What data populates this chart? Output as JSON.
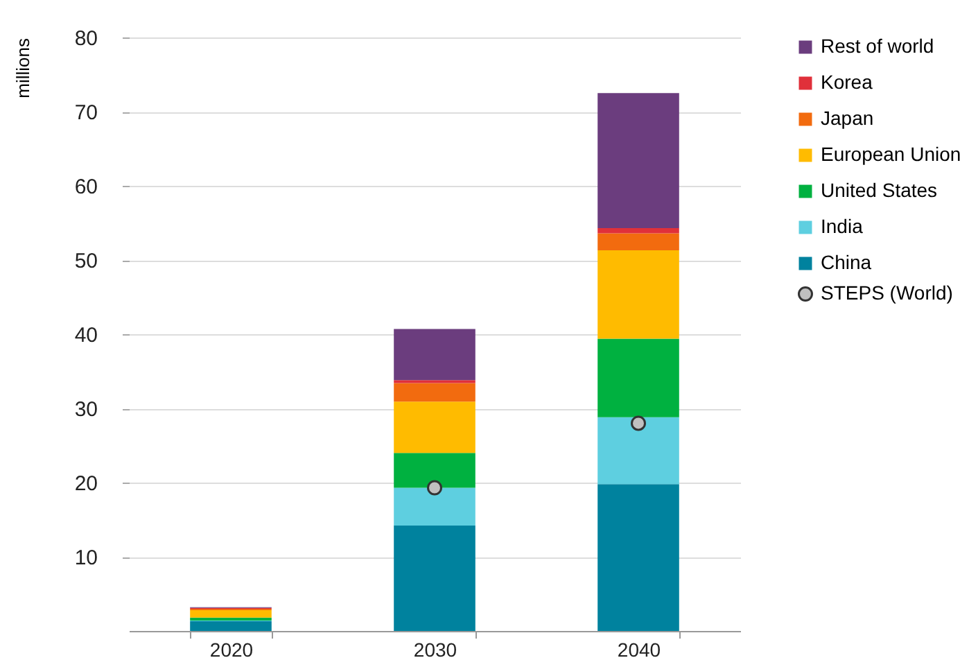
{
  "chart_data": {
    "type": "bar",
    "stacked": true,
    "ylabel": "millions",
    "categories": [
      "2020",
      "2030",
      "2040"
    ],
    "series": [
      {
        "name": "China",
        "color": "#00829e",
        "values": [
          1.3,
          14.2,
          19.8
        ]
      },
      {
        "name": "India",
        "color": "#5ecfe0",
        "values": [
          0.1,
          5.1,
          9.0
        ]
      },
      {
        "name": "United States",
        "color": "#00b140",
        "values": [
          0.4,
          4.7,
          10.6
        ]
      },
      {
        "name": "European Union",
        "color": "#ffbb00",
        "values": [
          1.0,
          6.9,
          11.9
        ]
      },
      {
        "name": "Japan",
        "color": "#f26b0f",
        "values": [
          0.2,
          2.5,
          2.3
        ]
      },
      {
        "name": "Korea",
        "color": "#e0303a",
        "values": [
          0.1,
          0.4,
          0.7
        ]
      },
      {
        "name": "Rest of world",
        "color": "#6b3d7e",
        "values": [
          0.1,
          6.9,
          18.2
        ]
      },
      {
        "name": "STEPS (World)",
        "type": "scatter",
        "marker": "circle",
        "color": "#c0c0c0",
        "values": [
          null,
          19.3,
          28.0
        ]
      }
    ],
    "ylim": [
      0,
      80
    ],
    "yticks": [
      10,
      20,
      30,
      40,
      50,
      60,
      70,
      80
    ],
    "grid": "y",
    "legend": "right"
  }
}
